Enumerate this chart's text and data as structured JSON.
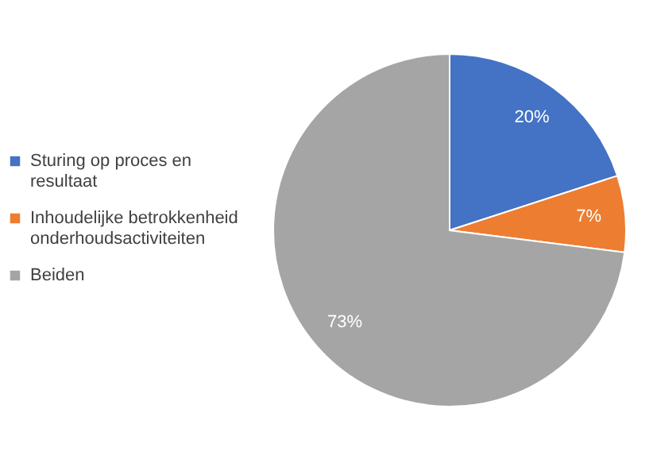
{
  "chart_data": {
    "type": "pie",
    "categories": [
      "Sturing op proces en resultaat",
      "Inhoudelijke betrokkenheid onderhoudsactiviteiten",
      "Beiden"
    ],
    "values": [
      20,
      7,
      73
    ],
    "colors": [
      "#4472c4",
      "#ed7d31",
      "#a5a5a5"
    ],
    "value_labels": [
      "20%",
      "7%",
      "73%"
    ],
    "legend": "left"
  }
}
